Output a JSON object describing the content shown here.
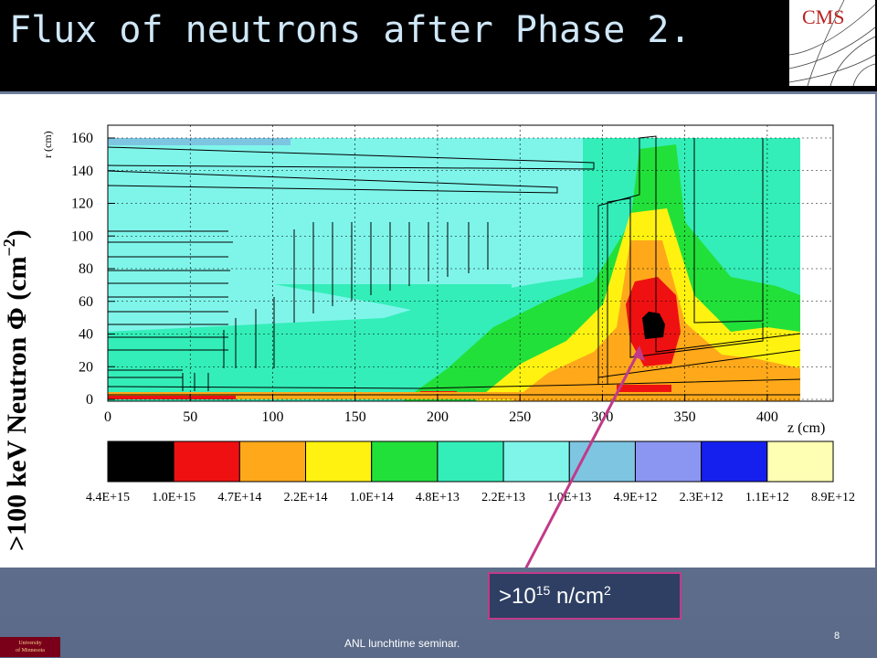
{
  "slide": {
    "title": "Flux of neutrons after Phase 2.",
    "footer": "ANL lunchtime seminar.",
    "page_number": "8",
    "logo_text": "CMS",
    "university_line1": "University",
    "university_line2": "of Minnesota",
    "callout_prefix": ">10",
    "callout_exp": "15",
    "callout_suffix": " n/cm",
    "callout_sq": "2"
  },
  "chart_data": {
    "type": "heatmap",
    "ylabel_outer_prefix": ">100 keV Neutron ",
    "ylabel_outer_phi": "Φ",
    "ylabel_outer_unit": " (cm",
    "ylabel_outer_exp": "−2",
    "ylabel_outer_close": ")",
    "ylabel": "r (cm)",
    "xlabel": "z (cm)",
    "xlim": [
      0,
      420
    ],
    "ylim": [
      0,
      160
    ],
    "x_ticks": [
      0,
      50,
      100,
      150,
      200,
      250,
      300,
      350,
      400
    ],
    "y_ticks": [
      0,
      20,
      40,
      60,
      80,
      100,
      120,
      140,
      160
    ],
    "colorbar_labels": [
      "4.4E+15",
      "1.0E+15",
      "4.7E+14",
      "2.2E+14",
      "1.0E+14",
      "4.8E+13",
      "2.2E+13",
      "1.0E+13",
      "4.9E+12",
      "2.3E+12",
      "1.1E+12",
      "8.9E+12"
    ],
    "colorbar_colors": [
      "#000000",
      "#ef1111",
      "#ffa91a",
      "#fff210",
      "#22e03a",
      "#33eeb8",
      "#7ff5ea",
      "#7ec5e2",
      "#8b95f2",
      "#1620ee",
      "#ffffb4"
    ],
    "colors": {
      "black": "#000000",
      "red": "#ef1111",
      "orange": "#ffa91a",
      "yellow": "#fff210",
      "green": "#22e03a",
      "aqua": "#33eeb8",
      "cyan": "#7ff5ea",
      "lightblue": "#7ec5e2"
    }
  }
}
